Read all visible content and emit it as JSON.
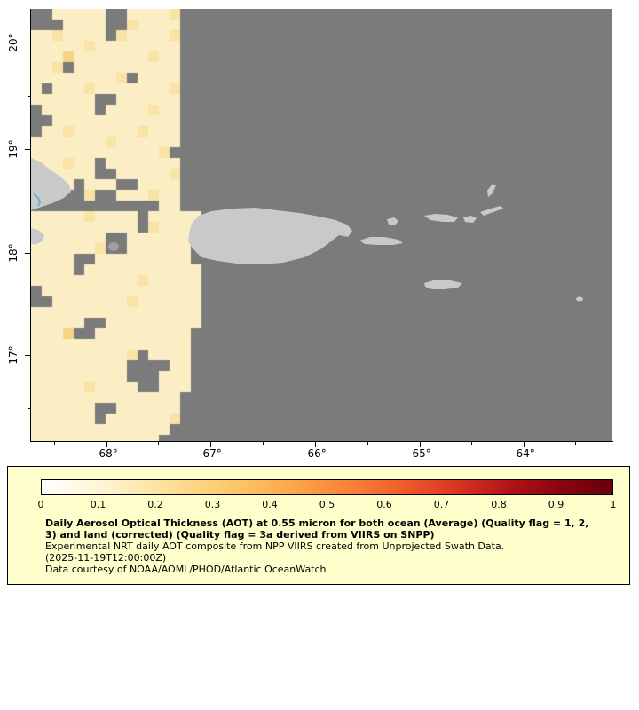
{
  "figure": {
    "background_color": "#ffffff"
  },
  "map": {
    "ocean_no_data_color": "#7b7b7b",
    "land_color": "#c9c9c9",
    "axis": {
      "lat_tick_labels": [
        "20°",
        "19°",
        "18°",
        "17°"
      ],
      "lat_tick_y": [
        38,
        158,
        275,
        390
      ],
      "lon_tick_labels": [
        "-68°",
        "-67°",
        "-66°",
        "-65°",
        "-64°"
      ],
      "lon_tick_x": [
        85,
        202,
        320,
        438,
        555
      ]
    },
    "aot_palette": {
      "a": "#fbeec4",
      "b": "#f9e3a5",
      "c": "#f6d484"
    },
    "aot_cell_size": 12,
    "aot_grid": [
      "..aaaaa..aaaab...",
      "...aaaa..baaaa...",
      "aabaaaa.baaaab...",
      "aaaaabaaaaaaaa...",
      "aaacaaaaaaabaa...",
      "aab.aaaaaaaaaa...",
      "aaaaaaaab.aaaa...",
      "a.aaabaaaaaaab...",
      "aaaaaa..aaaaaa...",
      ".aaaaa.aaaabaa...",
      "..aaaaaaaaaaaa...",
      ".aabaaaaaabaaa...",
      "aaaaaaabaaaaaa...",
      "aaaaaaaaaaaab....",
      "aaabaa.aaaaaaa...",
      "aaaaaa..aaaaab...",
      "aaaa.aaa..aaaa...",
      "aa...b..aaabaa...",
      "............aa...",
      "aaaaabaaaa.aaaaa.",
      "aaaaaaaaaa.baaaa.",
      "aaaaaaa..aaaaaa..",
      "aaaaaab..aaaaaa..",
      "aaaa..aaaaaaaaa..",
      "aaaa.aaaaaaaaaaa.",
      "aaaaaaaaaabaaaaa.",
      ".aaaaaaaaaaaaaaa.",
      "..aaaaaaabaaaaaa.",
      "aaaaaaaaaaaaaaaa.",
      "aaaaa..aaaaaaaaa.",
      "aaac..aaaaaaaaa..",
      "aaaaaaaaaaaaaaa..",
      "aaaaaaaaab.aaaa..",
      "aaaaaaaaa....aa..",
      "aaaaaaaaa...aaa..",
      "aaaaabaaaa..aaa..",
      "aaaaaaaaaaaaaa...",
      "aaaaaa..aaaaaa...",
      "aaaaaa.aaaaaab...",
      "aaaaaaaaaaaaa....",
      "aaaaaaaaaaaa....."
    ]
  },
  "legend": {
    "panel_color": "#ffffcc",
    "colorbar": {
      "min": 0,
      "max": 1,
      "tick_labels": [
        "0",
        "0.1",
        "0.2",
        "0.3",
        "0.4",
        "0.5",
        "0.6",
        "0.7",
        "0.8",
        "0.9",
        "1"
      ],
      "gradient_stops": [
        "#ffffff",
        "#fff6da",
        "#fee7ac",
        "#fed582",
        "#fdbf60",
        "#fda145",
        "#f98038",
        "#ef5b29",
        "#da3423",
        "#b11318",
        "#8a0410",
        "#67000d"
      ]
    },
    "title": "Daily Aerosol Optical Thickness (AOT) at 0.55 micron for both ocean (Average) (Quality flag = 1, 2, 3) and land (corrected) (Quality flag = 3a derived from VIIRS on SNPP)",
    "subtitle": "Experimental NRT daily AOT composite from NPP VIIRS created from Unprojected Swath Data.",
    "timestamp": "(2025-11-19T12:00:00Z)",
    "credit": "Data courtesy of NOAA/AOML/PHOD/Atlantic OceanWatch"
  }
}
